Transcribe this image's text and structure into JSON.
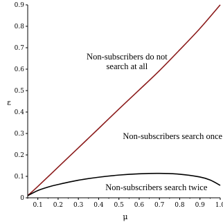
{
  "chart_data": {
    "type": "line",
    "xlabel": "μ",
    "ylabel": "ε",
    "xlim": [
      0.05,
      1.0
    ],
    "ylim": [
      0,
      0.9
    ],
    "x_ticks": [
      0.1,
      0.2,
      0.3,
      0.4,
      0.5,
      0.6,
      0.7,
      0.8,
      0.9,
      1.0
    ],
    "x_tick_labels": [
      "0.1",
      "0.2",
      "0.3",
      "0.4",
      "0.5",
      "0.6",
      "0.7",
      "0.8",
      "0.9",
      "1.0"
    ],
    "y_ticks": [
      0,
      0.1,
      0.2,
      0.3,
      0.4,
      0.5,
      0.6,
      0.7,
      0.8,
      0.9
    ],
    "y_tick_labels": [
      "0",
      "0.1",
      "0.2",
      "0.3",
      "0.4",
      "0.5",
      "0.6",
      "0.7",
      "0.8",
      "0.9"
    ],
    "grid": false,
    "series": [
      {
        "color": "#8b1a1a",
        "x": [
          0.05,
          0.1,
          0.2,
          0.3,
          0.4,
          0.5,
          0.6,
          0.7,
          0.8,
          0.9,
          1.0
        ],
        "y": [
          0.01,
          0.053,
          0.143,
          0.233,
          0.323,
          0.414,
          0.503,
          0.593,
          0.69,
          0.79,
          0.9
        ]
      },
      {
        "color": "#000000",
        "x": [
          0.05,
          0.1,
          0.15,
          0.2,
          0.3,
          0.4,
          0.5,
          0.6,
          0.7,
          0.8,
          0.9,
          0.95,
          1.0
        ],
        "y": [
          0.01,
          0.034,
          0.05,
          0.062,
          0.082,
          0.096,
          0.106,
          0.112,
          0.114,
          0.11,
          0.097,
          0.083,
          0.058
        ]
      }
    ],
    "annotations": [
      {
        "text": "Non-subscribers do not",
        "x": 0.54,
        "y": 0.645
      },
      {
        "text": "search at all",
        "x": 0.54,
        "y": 0.6
      },
      {
        "text": "Non-subscribers search once",
        "x": 0.765,
        "y": 0.275
      },
      {
        "text": "Non-subscribers search twice",
        "x": 0.685,
        "y": 0.035
      }
    ]
  }
}
